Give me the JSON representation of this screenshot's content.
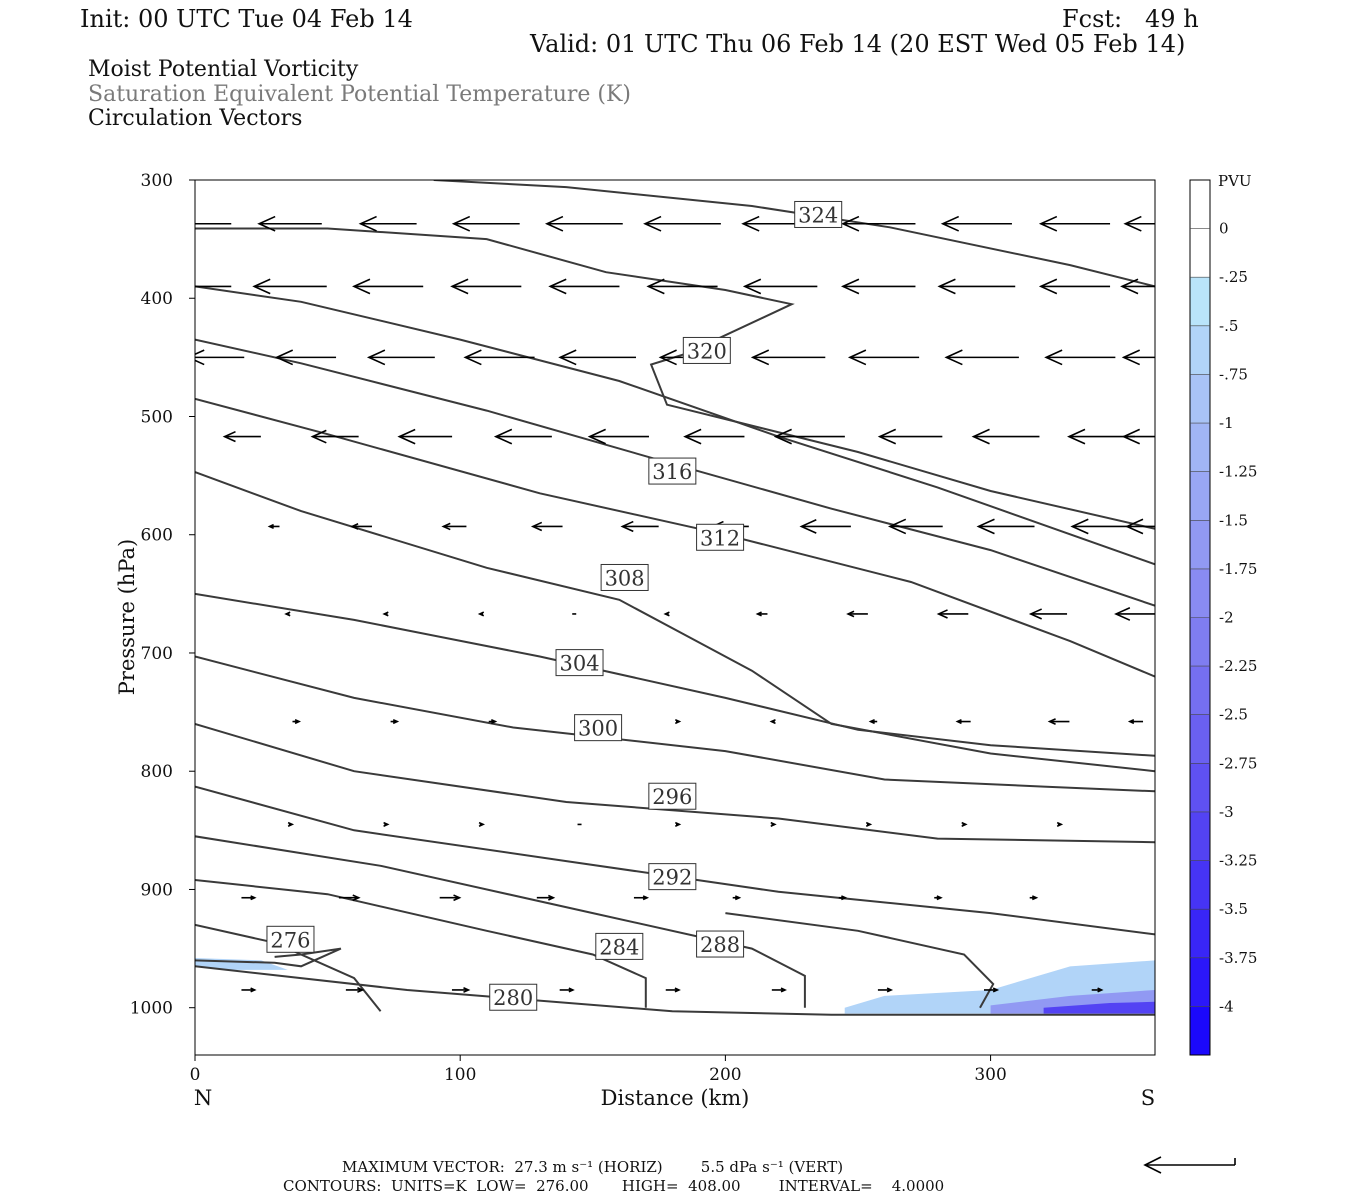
{
  "header": {
    "init": "Init: 00 UTC Tue 04 Feb 14",
    "fcst": "Fcst:   49 h",
    "valid": "Valid: 01 UTC Thu 06 Feb 14 (20 EST Wed 05 Feb 14)",
    "fields": [
      "Moist Potential Vorticity",
      "Saturation Equivalent Potential Temperature (K)",
      "Circulation Vectors"
    ]
  },
  "footer": {
    "line1": "MAXIMUM VECTOR:  27.3 m s⁻¹ (HORIZ)        5.5 dPa s⁻¹ (VERT)",
    "line2": "CONTOURS:  UNITS=K  LOW=  276.00       HIGH=  408.00        INTERVAL=    4.0000"
  },
  "chart_data": {
    "type": "contour",
    "xlabel": "Distance (km)",
    "ylabel": "Pressure (hPa)",
    "x_ticks": [
      0,
      100,
      200,
      300
    ],
    "y_ticks": [
      300,
      400,
      500,
      600,
      700,
      800,
      900,
      1000
    ],
    "xlim": [
      0,
      362
    ],
    "ylim": [
      300,
      1040
    ],
    "y_scale": "linear",
    "end_labels": {
      "left": "N",
      "right": "S"
    },
    "contour_units": "K",
    "contour_low": 276.0,
    "contour_high": 408.0,
    "contour_interval": 4.0,
    "contours": [
      {
        "label": "324",
        "label_pos": [
          235,
          330
        ],
        "points": [
          [
            90,
            300
          ],
          [
            140,
            306
          ],
          [
            210,
            322
          ],
          [
            262,
            340
          ],
          [
            330,
            372
          ],
          [
            362,
            390
          ]
        ]
      },
      {
        "label": "",
        "points": [
          [
            0,
            341
          ],
          [
            50,
            341
          ],
          [
            110,
            350
          ],
          [
            155,
            378
          ],
          [
            200,
            393
          ],
          [
            225,
            405
          ],
          [
            185,
            447
          ],
          [
            172,
            456
          ],
          [
            178,
            490
          ],
          [
            205,
            505
          ],
          [
            250,
            530
          ],
          [
            300,
            563
          ],
          [
            362,
            595
          ]
        ]
      },
      {
        "label": "320",
        "label_pos": [
          193,
          445
        ],
        "points": [
          [
            0,
            390
          ],
          [
            40,
            403
          ],
          [
            100,
            435
          ],
          [
            160,
            470
          ],
          [
            220,
            517
          ],
          [
            280,
            560
          ],
          [
            362,
            625
          ]
        ]
      },
      {
        "label": "316",
        "label_pos": [
          180,
          547
        ],
        "points": [
          [
            0,
            435
          ],
          [
            40,
            455
          ],
          [
            110,
            495
          ],
          [
            180,
            540
          ],
          [
            240,
            578
          ],
          [
            300,
            613
          ],
          [
            362,
            660
          ]
        ]
      },
      {
        "label": "312",
        "label_pos": [
          198,
          603
        ],
        "points": [
          [
            0,
            485
          ],
          [
            50,
            515
          ],
          [
            130,
            565
          ],
          [
            200,
            600
          ],
          [
            270,
            640
          ],
          [
            330,
            690
          ],
          [
            362,
            720
          ]
        ]
      },
      {
        "label": "308",
        "label_pos": [
          162,
          637
        ],
        "points": [
          [
            0,
            547
          ],
          [
            40,
            580
          ],
          [
            110,
            628
          ],
          [
            160,
            655
          ],
          [
            210,
            715
          ],
          [
            240,
            760
          ],
          [
            300,
            785
          ],
          [
            362,
            800
          ]
        ]
      },
      {
        "label": "304",
        "label_pos": [
          145,
          709
        ],
        "points": [
          [
            0,
            650
          ],
          [
            60,
            672
          ],
          [
            130,
            703
          ],
          [
            200,
            738
          ],
          [
            250,
            765
          ],
          [
            300,
            778
          ],
          [
            362,
            787
          ]
        ]
      },
      {
        "label": "300",
        "label_pos": [
          152,
          764
        ],
        "points": [
          [
            0,
            703
          ],
          [
            60,
            738
          ],
          [
            120,
            763
          ],
          [
            200,
            783
          ],
          [
            260,
            807
          ],
          [
            320,
            813
          ],
          [
            362,
            817
          ]
        ]
      },
      {
        "label": "296",
        "label_pos": [
          180,
          822
        ],
        "points": [
          [
            0,
            760
          ],
          [
            60,
            800
          ],
          [
            140,
            826
          ],
          [
            220,
            840
          ],
          [
            280,
            857
          ],
          [
            362,
            860
          ]
        ]
      },
      {
        "label": "292",
        "label_pos": [
          180,
          890
        ],
        "points": [
          [
            0,
            813
          ],
          [
            60,
            850
          ],
          [
            140,
            876
          ],
          [
            220,
            902
          ],
          [
            300,
            920
          ],
          [
            362,
            938
          ]
        ]
      },
      {
        "label": "288",
        "label_pos": [
          198,
          947
        ],
        "points": [
          [
            0,
            855
          ],
          [
            70,
            880
          ],
          [
            150,
            920
          ],
          [
            210,
            950
          ],
          [
            230,
            973
          ],
          [
            230,
            1000
          ]
        ]
      },
      {
        "label": "284",
        "label_pos": [
          160,
          949
        ],
        "points": [
          [
            0,
            892
          ],
          [
            50,
            904
          ],
          [
            110,
            935
          ],
          [
            150,
            955
          ],
          [
            170,
            975
          ],
          [
            170,
            1000
          ]
        ]
      },
      {
        "label": "280",
        "label_pos": [
          120,
          992
        ],
        "points": [
          [
            0,
            930
          ],
          [
            30,
            945
          ],
          [
            60,
            975
          ],
          [
            70,
            1003
          ]
        ]
      },
      {
        "label": "276",
        "label_pos": [
          36,
          943
        ],
        "points": [
          [
            0,
            960
          ],
          [
            30,
            962
          ],
          [
            40,
            965
          ],
          [
            55,
            950
          ],
          [
            40,
            955
          ],
          [
            30,
            957
          ]
        ]
      },
      {
        "label": "",
        "points": [
          [
            0,
            965
          ],
          [
            80,
            985
          ],
          [
            180,
            1003
          ],
          [
            240,
            1006
          ],
          [
            362,
            1006
          ]
        ]
      },
      {
        "label": "",
        "points": [
          [
            296,
            1000
          ],
          [
            301,
            980
          ],
          [
            290,
            955
          ],
          [
            250,
            935
          ],
          [
            200,
            920
          ]
        ]
      }
    ],
    "colorbar": {
      "title": "PVU",
      "labels": [
        "0",
        "-.25",
        "-.5",
        "-.75",
        "-1",
        "-1.25",
        "-1.5",
        "-1.75",
        "-2",
        "-2.25",
        "-2.5",
        "-2.75",
        "-3",
        "-3.25",
        "-3.5",
        "-3.75",
        "-4"
      ],
      "colors": [
        "#ffffff",
        "#ffffff",
        "#b9e4fa",
        "#b1d4f8",
        "#a9c3f6",
        "#a1b5f5",
        "#99a7f4",
        "#9199f3",
        "#898bf2",
        "#7f7df1",
        "#756ff1",
        "#6a60f1",
        "#5f51f2",
        "#5343f3",
        "#4634f5",
        "#3926f7",
        "#2b17f9",
        "#1b08fc"
      ]
    },
    "mpv_shading": [
      {
        "value": -0.5,
        "points": [
          [
            0,
            958
          ],
          [
            25,
            960
          ],
          [
            35,
            968
          ],
          [
            10,
            968
          ],
          [
            0,
            965
          ]
        ]
      },
      {
        "value": -0.5,
        "points": [
          [
            245,
            1000
          ],
          [
            260,
            990
          ],
          [
            300,
            985
          ],
          [
            330,
            965
          ],
          [
            362,
            960
          ],
          [
            362,
            1005
          ],
          [
            245,
            1005
          ]
        ]
      },
      {
        "value": -1.5,
        "points": [
          [
            300,
            998
          ],
          [
            330,
            990
          ],
          [
            362,
            985
          ],
          [
            362,
            1005
          ],
          [
            300,
            1005
          ]
        ]
      },
      {
        "value": -3.0,
        "points": [
          [
            320,
            1000
          ],
          [
            345,
            996
          ],
          [
            362,
            995
          ],
          [
            362,
            1005
          ],
          [
            320,
            1005
          ]
        ]
      }
    ],
    "vectors": [
      {
        "p": 337,
        "x": [
          0,
          36,
          73,
          110,
          147,
          184,
          221,
          258,
          295,
          332,
          362
        ],
        "u": [
          -22,
          -19,
          -17,
          -20,
          -23,
          -23,
          -23,
          -22,
          -21,
          -21,
          -18
        ]
      },
      {
        "p": 390,
        "x": [
          0,
          36,
          73,
          110,
          147,
          184,
          221,
          258,
          295,
          332,
          362
        ],
        "u": [
          -22,
          -22,
          -21,
          -21,
          -21,
          -21,
          -22,
          -22,
          -23,
          -21,
          -20
        ]
      },
      {
        "p": 450,
        "x": [
          8,
          42,
          78,
          115,
          152,
          188,
          224,
          260,
          297,
          334,
          362
        ],
        "u": [
          -17,
          -18,
          -20,
          -21,
          -23,
          -20,
          -22,
          -21,
          -22,
          -21,
          -19
        ]
      },
      {
        "p": 517,
        "x": [
          18,
          53,
          87,
          124,
          160,
          196,
          232,
          270,
          306,
          342,
          362
        ],
        "u": [
          -11,
          -14,
          -16,
          -17,
          -18,
          -18,
          -21,
          -19,
          -20,
          -20,
          -19
        ]
      },
      {
        "p": 593,
        "x": [
          30,
          63,
          98,
          133,
          168,
          202,
          238,
          272,
          306,
          342,
          362
        ],
        "u": [
          -3,
          -6,
          -7,
          -9,
          -11,
          -11,
          -15,
          -16,
          -17,
          -18,
          -17
        ]
      },
      {
        "p": 667,
        "x": [
          35,
          72,
          108,
          143,
          178,
          214,
          250,
          286,
          322,
          356
        ],
        "u": [
          -1,
          -1,
          -1,
          0,
          -1,
          -3,
          -6,
          -9,
          -11,
          -14
        ]
      },
      {
        "p": 758,
        "x": [
          38,
          75,
          112,
          148,
          182,
          218,
          256,
          290,
          326,
          355
        ],
        "u": [
          2,
          2,
          2,
          1,
          1,
          -1,
          -2,
          -4,
          -6,
          -4
        ]
      },
      {
        "p": 845,
        "x": [
          36,
          72,
          108,
          145,
          182,
          218,
          254,
          290,
          326
        ],
        "u": [
          1,
          1,
          1,
          0,
          1,
          1,
          1,
          1,
          1
        ]
      },
      {
        "p": 907,
        "x": [
          20,
          58,
          96,
          132,
          168,
          204,
          244,
          280,
          316
        ],
        "u": [
          4,
          6,
          6,
          5,
          4,
          2,
          2,
          2,
          2
        ]
      },
      {
        "p": 985,
        "x": [
          20,
          60,
          100,
          140,
          180,
          220,
          260,
          300,
          340
        ],
        "u": [
          4,
          5,
          5,
          4,
          4,
          4,
          4,
          4,
          3
        ]
      }
    ],
    "reference_vector": {
      "u": -27.3
    }
  }
}
